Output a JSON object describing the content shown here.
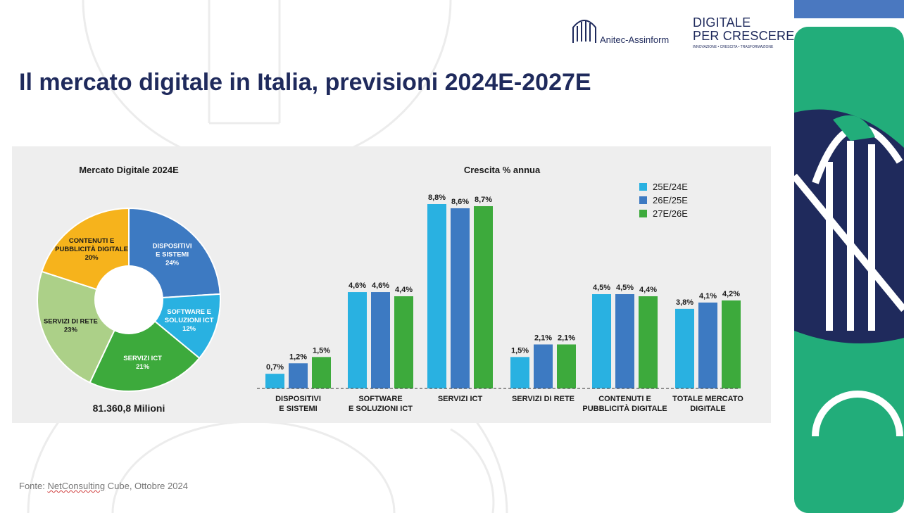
{
  "slide": {
    "title": "Il mercato digitale in Italia, previsioni 2024E-2027E",
    "logos": {
      "anitec": "Anitec-Assinform",
      "dpc_line1": "DIGITALE",
      "dpc_line2": "PER CRESCERE",
      "dpc_tagline": "INNOVAZIONE • CRESCITA • TRASFORMAZIONE"
    },
    "source_prefix": "Fonte: ",
    "source_link": "NetConsulting",
    "source_suffix": " Cube, Ottobre 2024"
  },
  "colors": {
    "navy": "#1f2a5c",
    "green_side": "#22ad7a",
    "blue_side": "#4a78c0"
  },
  "chart_data": [
    {
      "type": "pie",
      "title": "Mercato Digitale 2024E",
      "total_label": "81.360,8 Milioni",
      "slices": [
        {
          "label_lines": [
            "DISPOSITIVI",
            "E SISTEMI"
          ],
          "value": 24,
          "value_label": "24%",
          "color": "#3d7ac2"
        },
        {
          "label_lines": [
            "SOFTWARE E",
            "SOLUZIONI ICT"
          ],
          "value": 12,
          "value_label": "12%",
          "color": "#29b1e1"
        },
        {
          "label_lines": [
            "SERVIZI ICT"
          ],
          "value": 21,
          "value_label": "21%",
          "color": "#3daa3c"
        },
        {
          "label_lines": [
            "SERVIZI DI RETE"
          ],
          "value": 23,
          "value_label": "23%",
          "color": "#acd088"
        },
        {
          "label_lines": [
            "CONTENUTI E",
            "PUBBLICITÀ DIGITALE"
          ],
          "value": 20,
          "value_label": "20%",
          "color": "#f6b31c"
        }
      ]
    },
    {
      "type": "bar",
      "title": "Crescita % annua",
      "categories": [
        [
          "DISPOSITIVI",
          "E SISTEMI"
        ],
        [
          "SOFTWARE",
          "E SOLUZIONI ICT"
        ],
        [
          "SERVIZI ICT"
        ],
        [
          "SERVIZI DI RETE"
        ],
        [
          "CONTENUTI E",
          "PUBBLICITÀ DIGITALE"
        ],
        [
          "TOTALE MERCATO",
          "DIGITALE"
        ]
      ],
      "series": [
        {
          "name": "25E/24E",
          "color": "#29b1e1",
          "values": [
            0.7,
            4.6,
            8.8,
            1.5,
            4.5,
            3.8
          ],
          "labels": [
            "0,7%",
            "4,6%",
            "8,8%",
            "1,5%",
            "4,5%",
            "3,8%"
          ]
        },
        {
          "name": "26E/25E",
          "color": "#3d7ac2",
          "values": [
            1.2,
            4.6,
            8.6,
            2.1,
            4.5,
            4.1
          ],
          "labels": [
            "1,2%",
            "4,6%",
            "8,6%",
            "2,1%",
            "4,5%",
            "4,1%"
          ]
        },
        {
          "name": "27E/26E",
          "color": "#3daa3c",
          "values": [
            1.5,
            4.4,
            8.7,
            2.1,
            4.4,
            4.2
          ],
          "labels": [
            "1,5%",
            "4,4%",
            "8,7%",
            "2,1%",
            "4,4%",
            "4,2%"
          ]
        }
      ],
      "ylim": [
        0,
        8.8
      ],
      "legend": "top-right",
      "grid": false
    }
  ]
}
